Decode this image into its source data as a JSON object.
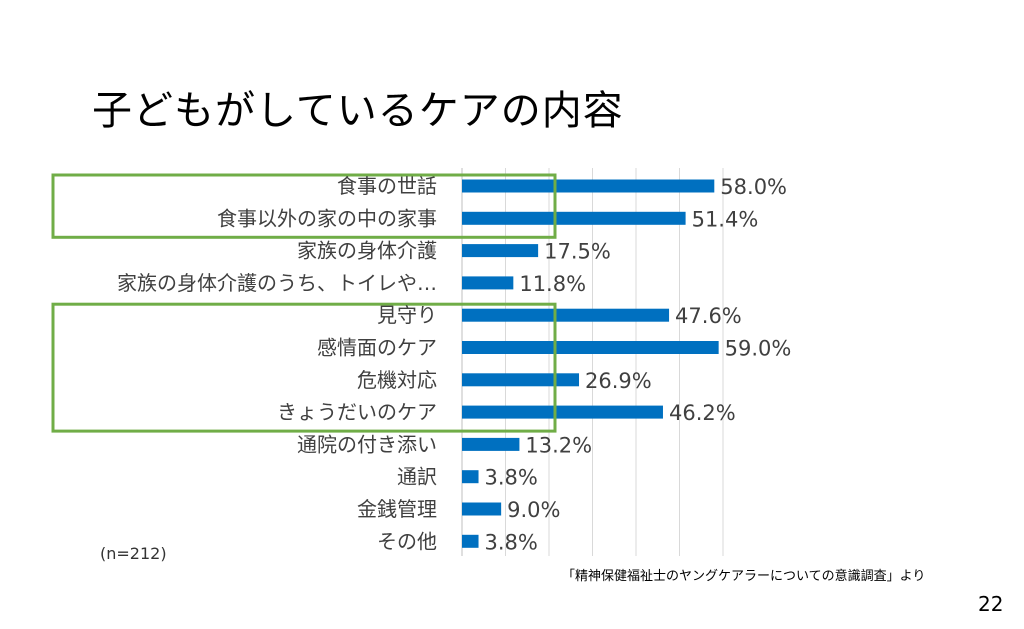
{
  "slide": {
    "title": "子どもがしているケアの内容",
    "sample_note": "(n=212)",
    "source": "「精神保健福祉士のヤングケアラーについての意識調査」より",
    "page_number": "22"
  },
  "colors": {
    "bar": "#0070C0",
    "highlight_box": "#70AD47",
    "grid": "#D9D9D9",
    "label_text": "#404040"
  },
  "chart_data": {
    "type": "bar",
    "orientation": "horizontal",
    "categories": [
      "食事の世話",
      "食事以外の家の中の家事",
      "家族の身体介護",
      "家族の身体介護のうち、トイレや…",
      "見守り",
      "感情面のケア",
      "危機対応",
      "きょうだいのケア",
      "通院の付き添い",
      "通訳",
      "金銭管理",
      "その他"
    ],
    "values": [
      58.0,
      51.4,
      17.5,
      11.8,
      47.6,
      59.0,
      26.9,
      46.2,
      13.2,
      3.8,
      9.0,
      3.8
    ],
    "value_labels": [
      "58.0%",
      "51.4%",
      "17.5%",
      "11.8%",
      "47.6%",
      "59.0%",
      "26.9%",
      "46.2%",
      "13.2%",
      "3.8%",
      "9.0%",
      "3.8%"
    ],
    "xlim": [
      0,
      60
    ],
    "grid": true,
    "highlight_groups": [
      {
        "first_index": 0,
        "last_index": 1
      },
      {
        "first_index": 4,
        "last_index": 7
      }
    ]
  }
}
